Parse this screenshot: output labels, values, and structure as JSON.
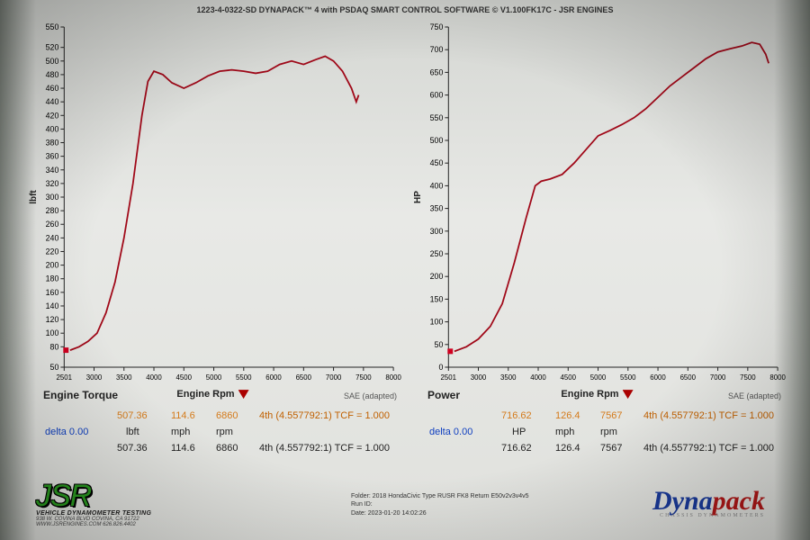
{
  "header": "1223-4-0322-SD DYNAPACK™ 4 with PSDAQ SMART CONTROL SOFTWARE © V1.100FK17C - JSR ENGINES",
  "torque_chart": {
    "type": "line",
    "title": "Engine Torque",
    "xlabel": "Engine Rpm",
    "ylabel": "lbft",
    "sae_note": "SAE (adapted)",
    "x_min": 2501,
    "x_max": 8000,
    "y_min": 50,
    "y_max": 550,
    "x_ticks": [
      2501,
      3000,
      3500,
      4000,
      4500,
      5000,
      5500,
      6000,
      6500,
      7000,
      7500,
      8000
    ],
    "y_ticks": [
      50,
      80,
      100,
      120,
      140,
      160,
      180,
      200,
      220,
      240,
      260,
      280,
      300,
      320,
      340,
      360,
      380,
      400,
      420,
      440,
      460,
      480,
      500,
      520,
      550
    ],
    "series_color": "#a00818",
    "grid_color": "#c2c3be",
    "bg_color": "#e6e7e2",
    "points": [
      [
        2600,
        75
      ],
      [
        2750,
        80
      ],
      [
        2900,
        88
      ],
      [
        3050,
        100
      ],
      [
        3200,
        130
      ],
      [
        3350,
        175
      ],
      [
        3500,
        240
      ],
      [
        3650,
        320
      ],
      [
        3800,
        420
      ],
      [
        3900,
        470
      ],
      [
        4000,
        485
      ],
      [
        4150,
        480
      ],
      [
        4300,
        468
      ],
      [
        4500,
        460
      ],
      [
        4700,
        468
      ],
      [
        4900,
        478
      ],
      [
        5100,
        485
      ],
      [
        5300,
        487
      ],
      [
        5500,
        485
      ],
      [
        5700,
        482
      ],
      [
        5900,
        485
      ],
      [
        6100,
        495
      ],
      [
        6300,
        500
      ],
      [
        6500,
        495
      ],
      [
        6700,
        502
      ],
      [
        6860,
        507
      ],
      [
        7000,
        500
      ],
      [
        7150,
        485
      ],
      [
        7300,
        460
      ],
      [
        7380,
        440
      ],
      [
        7420,
        450
      ]
    ]
  },
  "power_chart": {
    "type": "line",
    "title": "Power",
    "xlabel": "Engine Rpm",
    "ylabel": "HP",
    "sae_note": "SAE (adapted)",
    "x_min": 2501,
    "x_max": 8000,
    "y_min": 0,
    "y_max": 750,
    "x_ticks": [
      2501,
      3000,
      3500,
      4000,
      4500,
      5000,
      5500,
      6000,
      6500,
      7000,
      7500,
      8000
    ],
    "y_ticks": [
      0,
      50,
      100,
      150,
      200,
      250,
      300,
      350,
      400,
      450,
      500,
      550,
      600,
      650,
      700,
      750
    ],
    "series_color": "#a00818",
    "grid_color": "#c2c3be",
    "bg_color": "#e6e7e2",
    "points": [
      [
        2600,
        35
      ],
      [
        2800,
        45
      ],
      [
        3000,
        62
      ],
      [
        3200,
        90
      ],
      [
        3400,
        140
      ],
      [
        3600,
        230
      ],
      [
        3800,
        330
      ],
      [
        3950,
        400
      ],
      [
        4050,
        410
      ],
      [
        4200,
        415
      ],
      [
        4400,
        425
      ],
      [
        4600,
        450
      ],
      [
        4800,
        480
      ],
      [
        5000,
        510
      ],
      [
        5200,
        522
      ],
      [
        5400,
        535
      ],
      [
        5600,
        550
      ],
      [
        5800,
        570
      ],
      [
        6000,
        595
      ],
      [
        6200,
        620
      ],
      [
        6400,
        640
      ],
      [
        6600,
        660
      ],
      [
        6800,
        680
      ],
      [
        7000,
        695
      ],
      [
        7200,
        702
      ],
      [
        7400,
        708
      ],
      [
        7567,
        716
      ],
      [
        7700,
        712
      ],
      [
        7800,
        690
      ],
      [
        7850,
        670
      ]
    ]
  },
  "torque_readout": {
    "val": "507.36",
    "unit": "lbft",
    "mph": "114.6",
    "mph_u": "mph",
    "rpm": "6860",
    "rpm_u": "rpm",
    "gear": "4th (4.557792:1) TCF = 1.000",
    "delta": "delta 0.00",
    "val2": "507.36",
    "mph2": "114.6",
    "rpm2": "6860",
    "gear2": "4th (4.557792:1) TCF = 1.000"
  },
  "power_readout": {
    "val": "716.62",
    "unit": "HP",
    "mph": "126.4",
    "mph_u": "mph",
    "rpm": "7567",
    "rpm_u": "rpm",
    "gear": "4th (4.557792:1) TCF = 1.000",
    "delta": "delta 0.00",
    "val2": "716.62",
    "mph2": "126.4",
    "rpm2": "7567",
    "gear2": "4th (4.557792:1) TCF = 1.000"
  },
  "footer": {
    "jsr_brand": "JSR",
    "jsr_line1": "VEHICLE DYNAMOMETER TESTING",
    "jsr_line2": "938 W. COVINA BLVD COVINA, CA 91722",
    "jsr_line3": "WWW.JSRENGINES.COM 626.826.4402",
    "folder_lbl": "Folder:",
    "folder_val": "2018 HondaCivic Type RUSR FK8 Return E50v2v3v4v5",
    "runid_lbl": "Run ID:",
    "date_lbl": "Date:",
    "date_val": "2023-01-20 14:02:26",
    "dynapack": "Dynapack",
    "dynapack_sub": "CHASSIS DYNAMOMETERS"
  }
}
